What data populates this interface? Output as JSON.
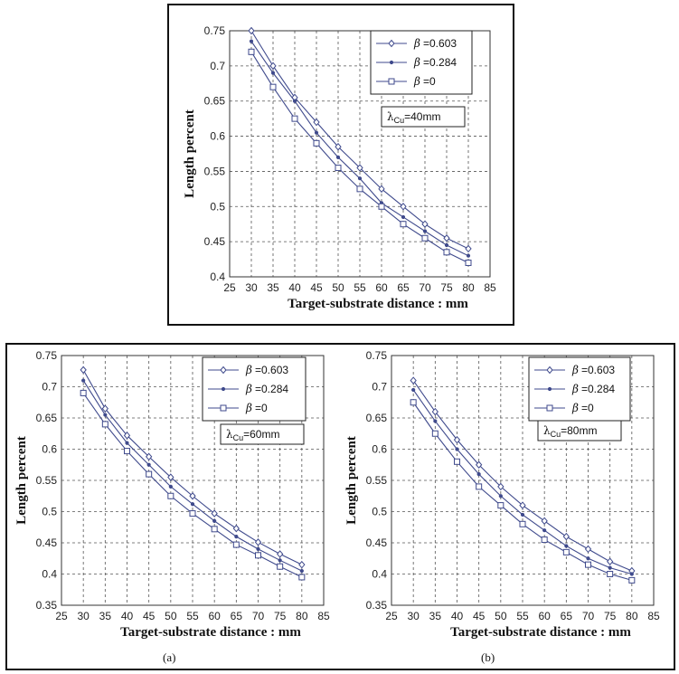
{
  "chart_data": [
    {
      "type": "line",
      "xlabel": "Target-substrate distance : mm",
      "ylabel": "Length percent",
      "xlim": [
        25,
        85
      ],
      "ylim": [
        0.4,
        0.75
      ],
      "xticks": [
        25,
        30,
        35,
        40,
        45,
        50,
        55,
        60,
        65,
        70,
        75,
        80,
        85
      ],
      "yticks": [
        0.4,
        0.45,
        0.5,
        0.55,
        0.6,
        0.65,
        0.7,
        0.75
      ],
      "grid": true,
      "legend_position": "top-right",
      "annotation": {
        "lambda": "λ",
        "sub": "Cu",
        "value": "=40mm"
      },
      "caption": "",
      "x": [
        30,
        35,
        40,
        45,
        50,
        55,
        60,
        65,
        70,
        75,
        80
      ],
      "series": [
        {
          "legend_symbol": "β",
          "legend_value": "=0.603",
          "marker": "diamond",
          "values": [
            0.75,
            0.7,
            0.655,
            0.62,
            0.585,
            0.555,
            0.525,
            0.5,
            0.475,
            0.455,
            0.44
          ]
        },
        {
          "legend_symbol": "β",
          "legend_value": "=0.284",
          "marker": "dot",
          "values": [
            0.735,
            0.69,
            0.65,
            0.605,
            0.57,
            0.54,
            0.505,
            0.485,
            0.465,
            0.445,
            0.43
          ]
        },
        {
          "legend_symbol": "β",
          "legend_value": "=0",
          "marker": "square",
          "values": [
            0.72,
            0.67,
            0.625,
            0.59,
            0.555,
            0.525,
            0.5,
            0.475,
            0.455,
            0.435,
            0.42
          ]
        }
      ]
    },
    {
      "type": "line",
      "xlabel": "Target-substrate distance : mm",
      "ylabel": "Length percent",
      "xlim": [
        25,
        85
      ],
      "ylim": [
        0.35,
        0.75
      ],
      "xticks": [
        25,
        30,
        35,
        40,
        45,
        50,
        55,
        60,
        65,
        70,
        75,
        80,
        85
      ],
      "yticks": [
        0.35,
        0.4,
        0.45,
        0.5,
        0.55,
        0.6,
        0.65,
        0.7,
        0.75
      ],
      "grid": true,
      "legend_position": "top-right",
      "annotation": {
        "lambda": "λ",
        "sub": "Cu",
        "value": "=60mm"
      },
      "caption": "(a)",
      "x": [
        30,
        35,
        40,
        45,
        50,
        55,
        60,
        65,
        70,
        75,
        80
      ],
      "series": [
        {
          "legend_symbol": "β",
          "legend_value": "=0.603",
          "marker": "diamond",
          "values": [
            0.727,
            0.665,
            0.622,
            0.588,
            0.555,
            0.525,
            0.497,
            0.473,
            0.451,
            0.432,
            0.415
          ]
        },
        {
          "legend_symbol": "β",
          "legend_value": "=0.284",
          "marker": "dot",
          "values": [
            0.71,
            0.655,
            0.61,
            0.575,
            0.54,
            0.512,
            0.485,
            0.46,
            0.44,
            0.422,
            0.405
          ]
        },
        {
          "legend_symbol": "β",
          "legend_value": "=0",
          "marker": "square",
          "values": [
            0.69,
            0.64,
            0.597,
            0.56,
            0.525,
            0.497,
            0.472,
            0.447,
            0.43,
            0.412,
            0.395
          ]
        }
      ]
    },
    {
      "type": "line",
      "xlabel": "Target-substrate distance : mm",
      "ylabel": "Length percent",
      "xlim": [
        25,
        85
      ],
      "ylim": [
        0.35,
        0.75
      ],
      "xticks": [
        25,
        30,
        35,
        40,
        45,
        50,
        55,
        60,
        65,
        70,
        75,
        80,
        85
      ],
      "yticks": [
        0.35,
        0.4,
        0.45,
        0.5,
        0.55,
        0.6,
        0.65,
        0.7,
        0.75
      ],
      "grid": true,
      "legend_position": "top-right",
      "annotation": {
        "lambda": "λ",
        "sub": "Cu",
        "value": "=80mm"
      },
      "caption": "(b)",
      "x": [
        30,
        35,
        40,
        45,
        50,
        55,
        60,
        65,
        70,
        75,
        80
      ],
      "series": [
        {
          "legend_symbol": "β",
          "legend_value": "=0.603",
          "marker": "diamond",
          "values": [
            0.71,
            0.66,
            0.615,
            0.575,
            0.54,
            0.51,
            0.485,
            0.46,
            0.44,
            0.42,
            0.405
          ]
        },
        {
          "legend_symbol": "β",
          "legend_value": "=0.284",
          "marker": "dot",
          "values": [
            0.695,
            0.645,
            0.6,
            0.56,
            0.525,
            0.495,
            0.47,
            0.445,
            0.425,
            0.41,
            0.4
          ]
        },
        {
          "legend_symbol": "β",
          "legend_value": "=0",
          "marker": "square",
          "values": [
            0.675,
            0.625,
            0.58,
            0.54,
            0.51,
            0.48,
            0.455,
            0.435,
            0.415,
            0.4,
            0.39
          ]
        }
      ]
    }
  ],
  "colors": {
    "line": "#3f4a8c",
    "marker_fill": "#ffffff",
    "grid": "#555555",
    "frame": "#111111"
  }
}
